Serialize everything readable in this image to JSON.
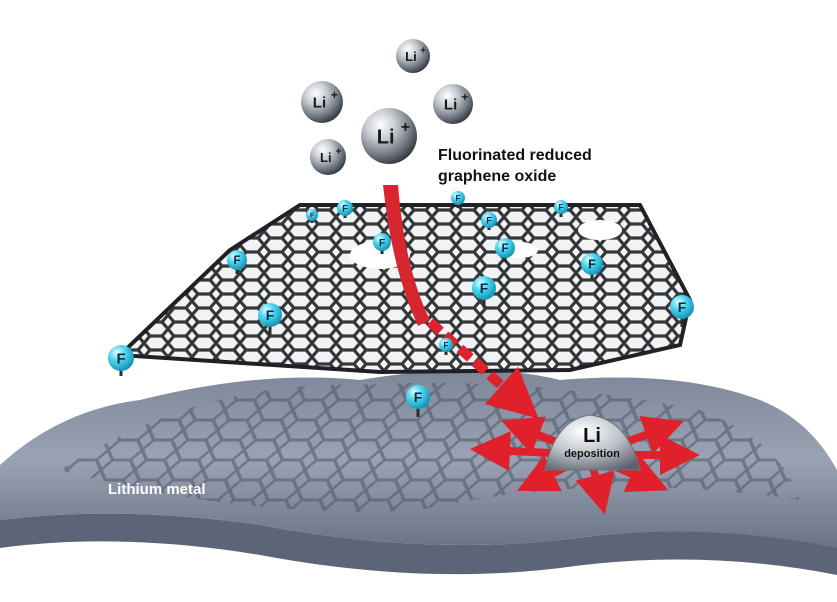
{
  "labels": {
    "title_line1": "Fluorinated reduced",
    "title_line2": "graphene oxide",
    "lithium_metal": "Lithium metal",
    "li_deposition_symbol": "Li",
    "li_deposition_word": "deposition"
  },
  "ions": [
    {
      "symbol": "Li",
      "charge": "+"
    },
    {
      "symbol": "Li",
      "charge": "+"
    },
    {
      "symbol": "Li",
      "charge": "+"
    },
    {
      "symbol": "Li",
      "charge": "+"
    },
    {
      "symbol": "Li",
      "charge": "+"
    }
  ],
  "fluorine_label": "F",
  "fluorine_count": 15,
  "colors": {
    "ion_highlight": "#f2f4f6",
    "ion_shadow": "#3e444c",
    "fluorine": "#3fd4f0",
    "lattice": "#2b2d31",
    "metal_sheet": "#8e98a8",
    "arrow": "#e0202a",
    "text": "#111111"
  }
}
